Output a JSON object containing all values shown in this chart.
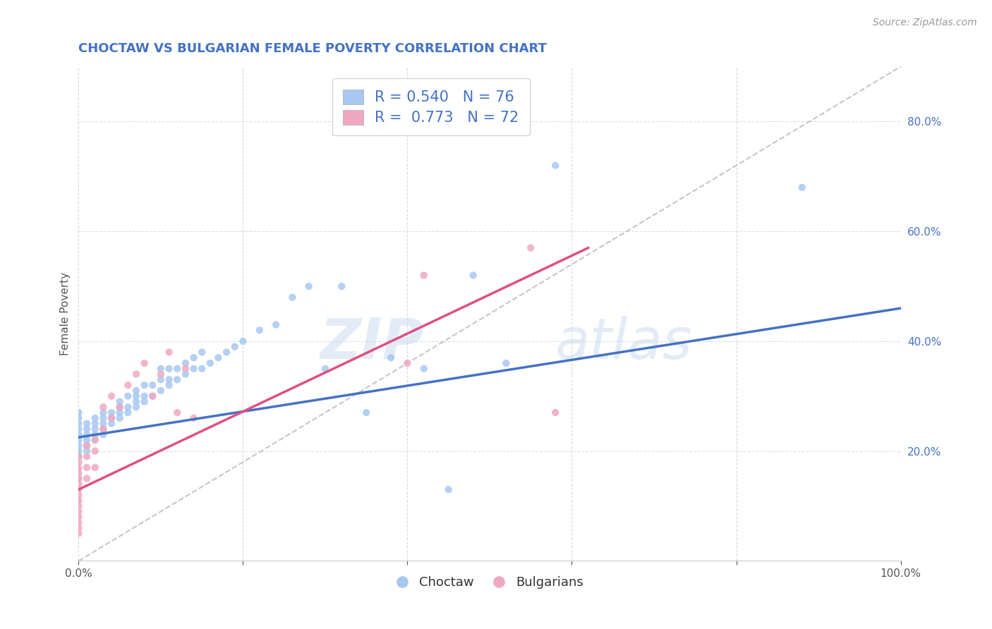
{
  "title": "CHOCTAW VS BULGARIAN FEMALE POVERTY CORRELATION CHART",
  "source": "Source: ZipAtlas.com",
  "xlabel": "",
  "ylabel": "Female Poverty",
  "xlim": [
    0,
    1
  ],
  "ylim": [
    0,
    0.9
  ],
  "xticks": [
    0.0,
    0.2,
    0.4,
    0.6,
    0.8,
    1.0
  ],
  "xtick_labels": [
    "0.0%",
    "",
    "",
    "",
    "",
    "100.0%"
  ],
  "yticks": [
    0.0,
    0.2,
    0.4,
    0.6,
    0.8
  ],
  "ytick_labels": [
    "",
    "20.0%",
    "40.0%",
    "60.0%",
    "80.0%"
  ],
  "watermark_zip": "ZIP",
  "watermark_atlas": "atlas",
  "legend_R_choctaw": "0.540",
  "legend_N_choctaw": "76",
  "legend_R_bulgarian": "0.773",
  "legend_N_bulgarian": "72",
  "choctaw_color": "#a8c8f0",
  "bulgarian_color": "#f0a8c0",
  "choctaw_line_color": "#4472c4",
  "bulgarian_line_color": "#e05080",
  "trend_line_color": "#b8b8b8",
  "background_color": "#ffffff",
  "grid_color": "#d0d8e8",
  "title_color": "#4472c4",
  "choctaw_scatter_x": [
    0.0,
    0.0,
    0.0,
    0.0,
    0.0,
    0.0,
    0.0,
    0.0,
    0.0,
    0.0,
    0.01,
    0.01,
    0.01,
    0.01,
    0.01,
    0.01,
    0.02,
    0.02,
    0.02,
    0.02,
    0.02,
    0.03,
    0.03,
    0.03,
    0.03,
    0.03,
    0.04,
    0.04,
    0.04,
    0.05,
    0.05,
    0.05,
    0.05,
    0.06,
    0.06,
    0.06,
    0.07,
    0.07,
    0.07,
    0.07,
    0.08,
    0.08,
    0.08,
    0.09,
    0.09,
    0.1,
    0.1,
    0.1,
    0.11,
    0.11,
    0.11,
    0.12,
    0.12,
    0.13,
    0.13,
    0.14,
    0.14,
    0.15,
    0.15,
    0.16,
    0.17,
    0.18,
    0.19,
    0.2,
    0.22,
    0.24,
    0.26,
    0.28,
    0.3,
    0.32,
    0.35,
    0.38,
    0.42,
    0.45,
    0.48,
    0.52,
    0.58,
    0.88
  ],
  "choctaw_scatter_y": [
    0.19,
    0.21,
    0.22,
    0.24,
    0.25,
    0.26,
    0.27,
    0.15,
    0.2,
    0.23,
    0.2,
    0.21,
    0.22,
    0.23,
    0.24,
    0.25,
    0.22,
    0.23,
    0.24,
    0.25,
    0.26,
    0.23,
    0.24,
    0.25,
    0.26,
    0.27,
    0.25,
    0.26,
    0.27,
    0.26,
    0.27,
    0.28,
    0.29,
    0.27,
    0.28,
    0.3,
    0.28,
    0.29,
    0.3,
    0.31,
    0.29,
    0.3,
    0.32,
    0.3,
    0.32,
    0.31,
    0.33,
    0.35,
    0.32,
    0.33,
    0.35,
    0.33,
    0.35,
    0.34,
    0.36,
    0.35,
    0.37,
    0.35,
    0.38,
    0.36,
    0.37,
    0.38,
    0.39,
    0.4,
    0.42,
    0.43,
    0.48,
    0.5,
    0.35,
    0.5,
    0.27,
    0.37,
    0.35,
    0.13,
    0.52,
    0.36,
    0.72,
    0.68
  ],
  "bulgarian_scatter_x": [
    0.0,
    0.0,
    0.0,
    0.0,
    0.0,
    0.0,
    0.0,
    0.0,
    0.0,
    0.0,
    0.0,
    0.0,
    0.0,
    0.0,
    0.0,
    0.01,
    0.01,
    0.01,
    0.01,
    0.02,
    0.02,
    0.02,
    0.03,
    0.03,
    0.04,
    0.04,
    0.05,
    0.06,
    0.07,
    0.08,
    0.09,
    0.1,
    0.11,
    0.12,
    0.13,
    0.14,
    0.4,
    0.42,
    0.55,
    0.58
  ],
  "bulgarian_scatter_y": [
    0.05,
    0.06,
    0.07,
    0.08,
    0.09,
    0.1,
    0.11,
    0.12,
    0.13,
    0.14,
    0.15,
    0.16,
    0.17,
    0.18,
    0.19,
    0.15,
    0.17,
    0.19,
    0.21,
    0.17,
    0.2,
    0.22,
    0.24,
    0.28,
    0.26,
    0.3,
    0.28,
    0.32,
    0.34,
    0.36,
    0.3,
    0.34,
    0.38,
    0.27,
    0.35,
    0.26,
    0.36,
    0.52,
    0.57,
    0.27
  ],
  "choctaw_trend_x": [
    0.0,
    1.0
  ],
  "choctaw_trend_y": [
    0.225,
    0.46
  ],
  "bulgarian_trend_x": [
    0.0,
    0.62
  ],
  "bulgarian_trend_y": [
    0.13,
    0.57
  ],
  "diagonal_trend_x": [
    0.0,
    1.0
  ],
  "diagonal_trend_y": [
    0.0,
    0.9
  ]
}
